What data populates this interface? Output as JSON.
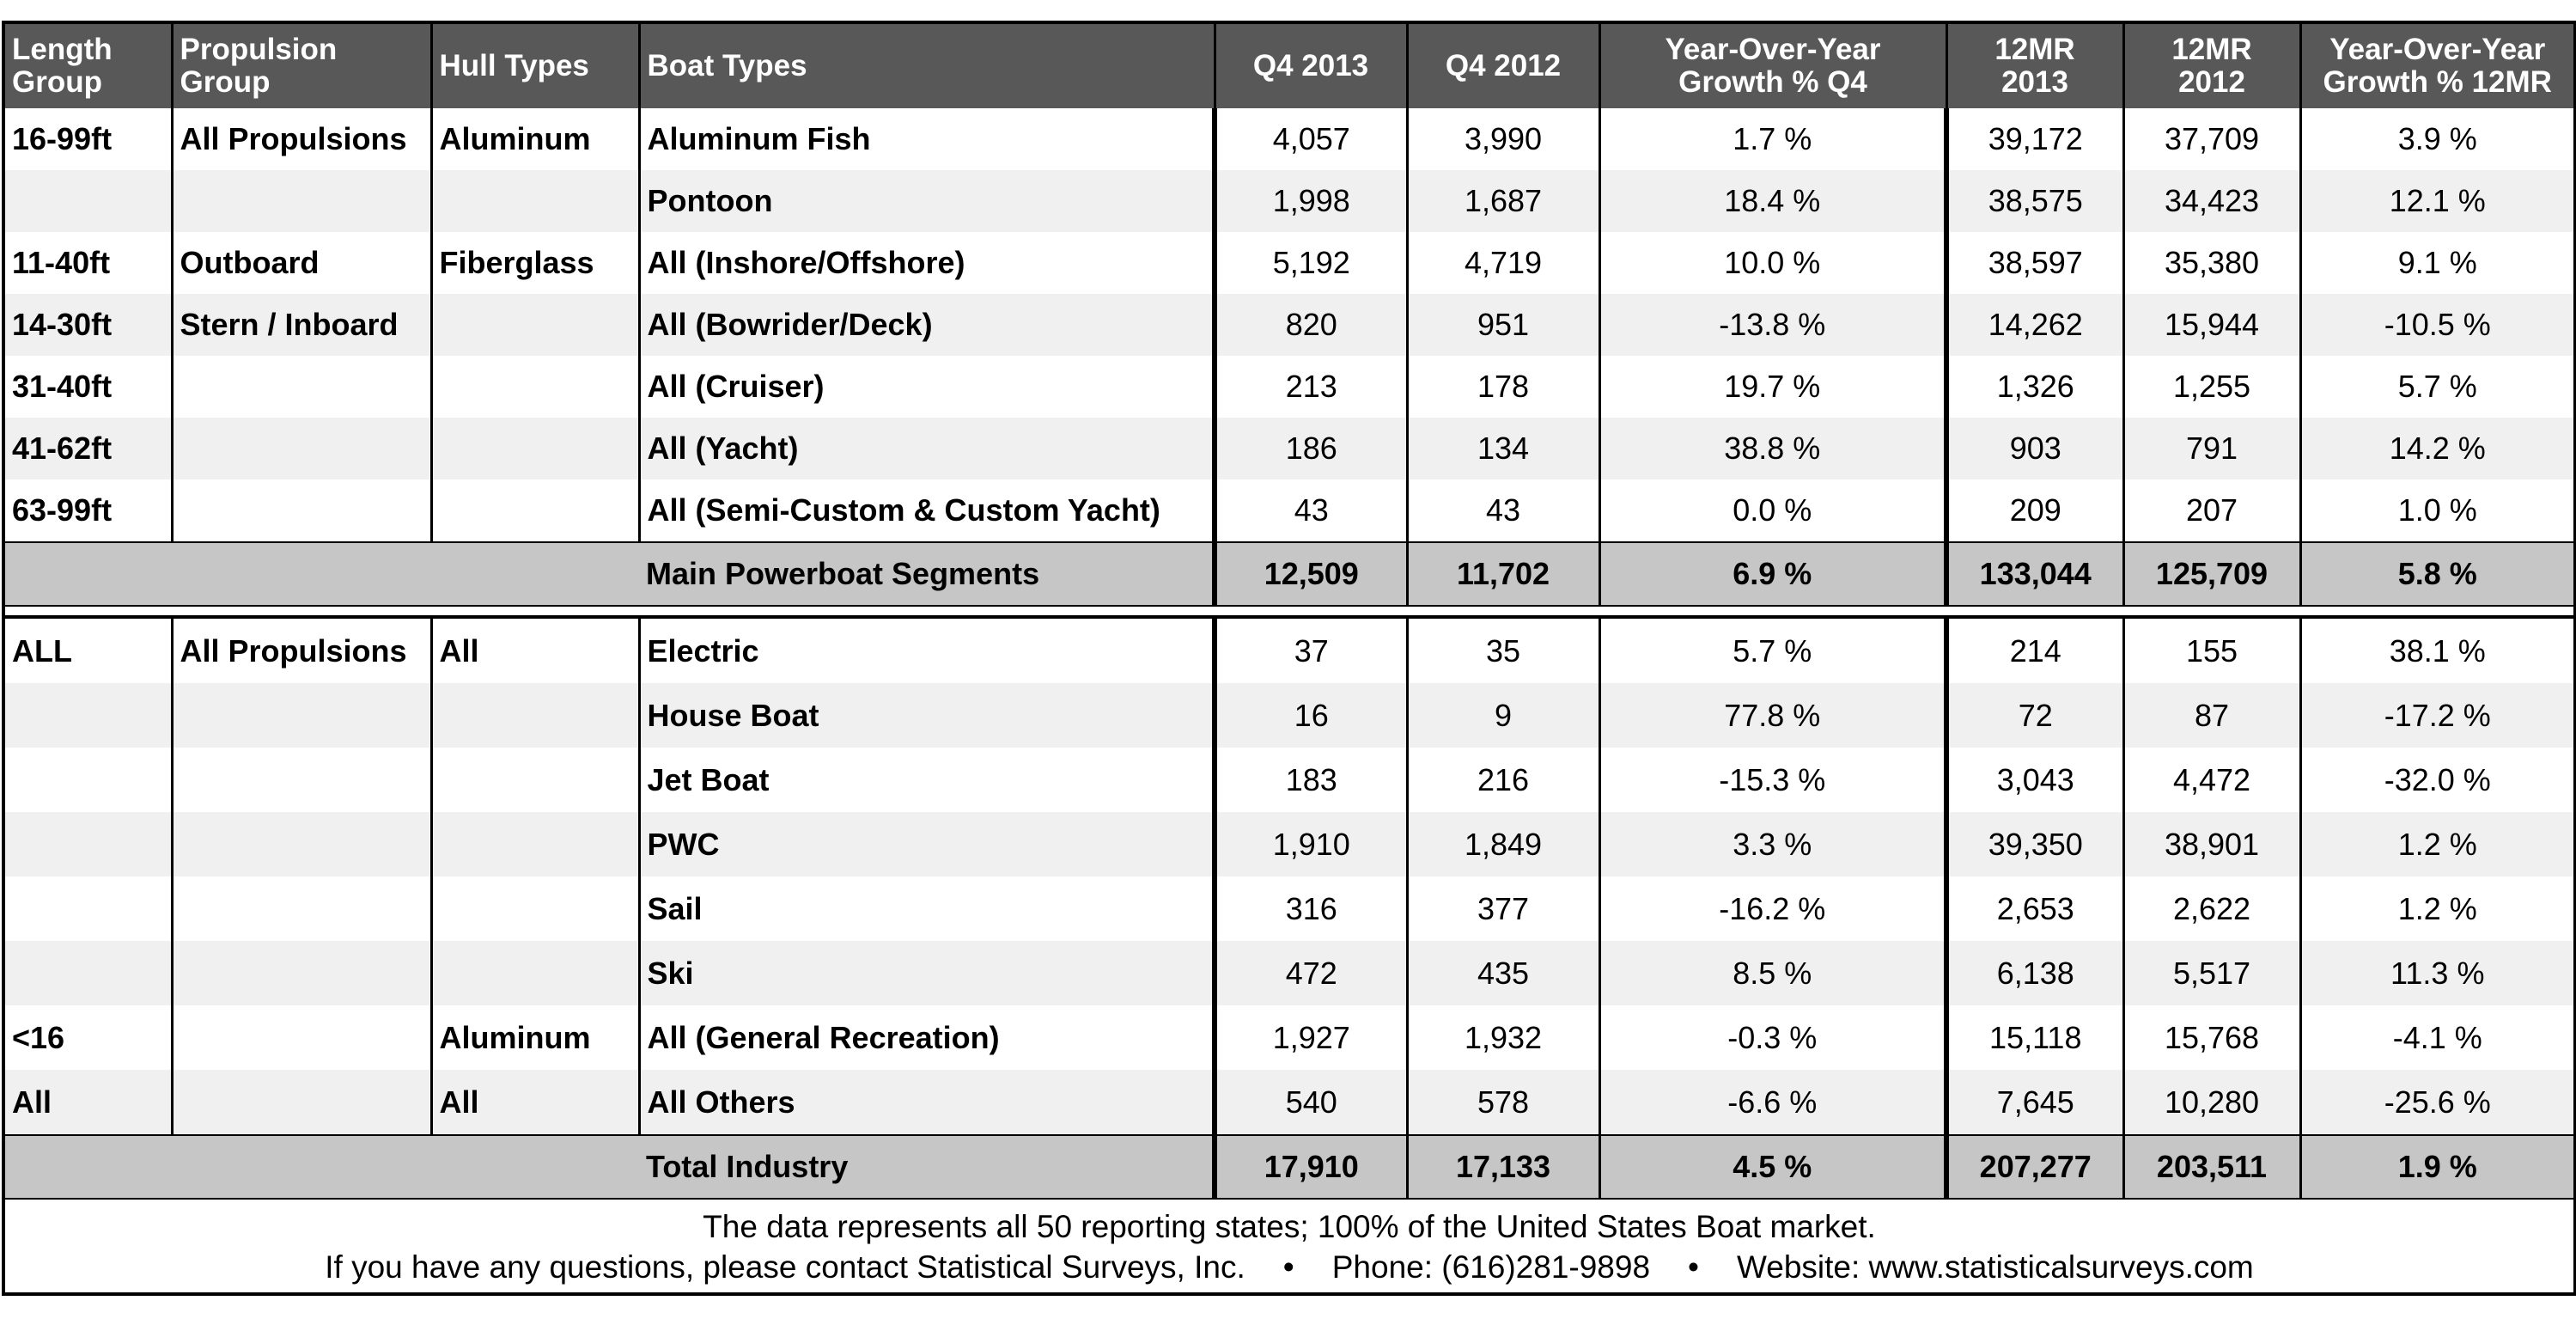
{
  "headers": [
    "Length Group",
    "Propulsion Group",
    "Hull Types",
    "Boat Types",
    "Q4 2013",
    "Q4 2012",
    "Year-Over-Year Growth % Q4",
    "12MR 2013",
    "12MR 2012",
    "Year-Over-Year Growth % 12MR"
  ],
  "header_lines": {
    "length": [
      "Length",
      "Group"
    ],
    "propulsion": [
      "Propulsion",
      "Group"
    ],
    "hull": "Hull Types",
    "boat": "Boat Types",
    "q4_2013": "Q4 2013",
    "q4_2012": "Q4 2012",
    "yoy_q4": [
      "Year-Over-Year",
      "Growth % Q4"
    ],
    "mr_2013": [
      "12MR",
      "2013"
    ],
    "mr_2012": [
      "12MR",
      "2012"
    ],
    "yoy_mr": [
      "Year-Over-Year",
      "Growth % 12MR"
    ]
  },
  "section1": {
    "rows": [
      {
        "length": "16-99ft",
        "propulsion": "All Propulsions",
        "hull": "Aluminum",
        "boat": "Aluminum Fish",
        "q4_2013": "4,057",
        "q4_2012": "3,990",
        "yoy_q4": "1.7 %",
        "mr_2013": "39,172",
        "mr_2012": "37,709",
        "yoy_mr": "3.9 %"
      },
      {
        "length": "",
        "propulsion": "",
        "hull": "",
        "boat": "Pontoon",
        "q4_2013": "1,998",
        "q4_2012": "1,687",
        "yoy_q4": "18.4 %",
        "mr_2013": "38,575",
        "mr_2012": "34,423",
        "yoy_mr": "12.1 %"
      },
      {
        "length": "11-40ft",
        "propulsion": "Outboard",
        "hull": "Fiberglass",
        "boat": "All (Inshore/Offshore)",
        "q4_2013": "5,192",
        "q4_2012": "4,719",
        "yoy_q4": "10.0 %",
        "mr_2013": "38,597",
        "mr_2012": "35,380",
        "yoy_mr": "9.1 %"
      },
      {
        "length": "14-30ft",
        "propulsion": "Stern / Inboard",
        "hull": "",
        "boat": "All (Bowrider/Deck)",
        "q4_2013": "820",
        "q4_2012": "951",
        "yoy_q4": "-13.8 %",
        "mr_2013": "14,262",
        "mr_2012": "15,944",
        "yoy_mr": "-10.5 %"
      },
      {
        "length": "31-40ft",
        "propulsion": "",
        "hull": "",
        "boat": "All (Cruiser)",
        "q4_2013": "213",
        "q4_2012": "178",
        "yoy_q4": "19.7 %",
        "mr_2013": "1,326",
        "mr_2012": "1,255",
        "yoy_mr": "5.7 %"
      },
      {
        "length": "41-62ft",
        "propulsion": "",
        "hull": "",
        "boat": "All (Yacht)",
        "q4_2013": "186",
        "q4_2012": "134",
        "yoy_q4": "38.8 %",
        "mr_2013": "903",
        "mr_2012": "791",
        "yoy_mr": "14.2 %"
      },
      {
        "length": "63-99ft",
        "propulsion": "",
        "hull": "",
        "boat": "All (Semi-Custom & Custom Yacht)",
        "q4_2013": "43",
        "q4_2012": "43",
        "yoy_q4": "0.0 %",
        "mr_2013": "209",
        "mr_2012": "207",
        "yoy_mr": "1.0 %"
      }
    ],
    "total": {
      "label": "Main Powerboat Segments",
      "q4_2013": "12,509",
      "q4_2012": "11,702",
      "yoy_q4": "6.9 %",
      "mr_2013": "133,044",
      "mr_2012": "125,709",
      "yoy_mr": "5.8 %"
    }
  },
  "section2": {
    "rows": [
      {
        "length": "ALL",
        "propulsion": "All Propulsions",
        "hull": "All",
        "boat": "Electric",
        "q4_2013": "37",
        "q4_2012": "35",
        "yoy_q4": "5.7 %",
        "mr_2013": "214",
        "mr_2012": "155",
        "yoy_mr": "38.1 %"
      },
      {
        "length": "",
        "propulsion": "",
        "hull": "",
        "boat": "House Boat",
        "q4_2013": "16",
        "q4_2012": "9",
        "yoy_q4": "77.8 %",
        "mr_2013": "72",
        "mr_2012": "87",
        "yoy_mr": "-17.2 %"
      },
      {
        "length": "",
        "propulsion": "",
        "hull": "",
        "boat": "Jet Boat",
        "q4_2013": "183",
        "q4_2012": "216",
        "yoy_q4": "-15.3 %",
        "mr_2013": "3,043",
        "mr_2012": "4,472",
        "yoy_mr": "-32.0 %"
      },
      {
        "length": "",
        "propulsion": "",
        "hull": "",
        "boat": "PWC",
        "q4_2013": "1,910",
        "q4_2012": "1,849",
        "yoy_q4": "3.3 %",
        "mr_2013": "39,350",
        "mr_2012": "38,901",
        "yoy_mr": "1.2 %"
      },
      {
        "length": "",
        "propulsion": "",
        "hull": "",
        "boat": "Sail",
        "q4_2013": "316",
        "q4_2012": "377",
        "yoy_q4": "-16.2 %",
        "mr_2013": "2,653",
        "mr_2012": "2,622",
        "yoy_mr": "1.2 %"
      },
      {
        "length": "",
        "propulsion": "",
        "hull": "",
        "boat": "Ski",
        "q4_2013": "472",
        "q4_2012": "435",
        "yoy_q4": "8.5 %",
        "mr_2013": "6,138",
        "mr_2012": "5,517",
        "yoy_mr": "11.3 %"
      },
      {
        "length": "<16",
        "propulsion": "",
        "hull": "Aluminum",
        "boat": "All (General Recreation)",
        "q4_2013": "1,927",
        "q4_2012": "1,932",
        "yoy_q4": "-0.3 %",
        "mr_2013": "15,118",
        "mr_2012": "15,768",
        "yoy_mr": "-4.1 %"
      },
      {
        "length": "All",
        "propulsion": "",
        "hull": "All",
        "boat": "All Others",
        "q4_2013": "540",
        "q4_2012": "578",
        "yoy_q4": "-6.6 %",
        "mr_2013": "7,645",
        "mr_2012": "10,280",
        "yoy_mr": "-25.6 %"
      }
    ],
    "total": {
      "label": "Total Industry",
      "q4_2013": "17,910",
      "q4_2012": "17,133",
      "yoy_q4": "4.5 %",
      "mr_2013": "207,277",
      "mr_2012": "203,511",
      "yoy_mr": "1.9 %"
    }
  },
  "footer": {
    "line1": "The data represents all 50 reporting states; 100% of the United States Boat market.",
    "contact": "If you have any questions, please contact Statistical Surveys, Inc.",
    "separator": "•",
    "phone": "Phone: (616)281-9898",
    "website": "Website: www.statisticalsurveys.com"
  },
  "colors": {
    "header_bg": "#585858",
    "header_text": "#ffffff",
    "alt_row": "#f0f0f0",
    "total_bg": "#c6c6c6"
  }
}
